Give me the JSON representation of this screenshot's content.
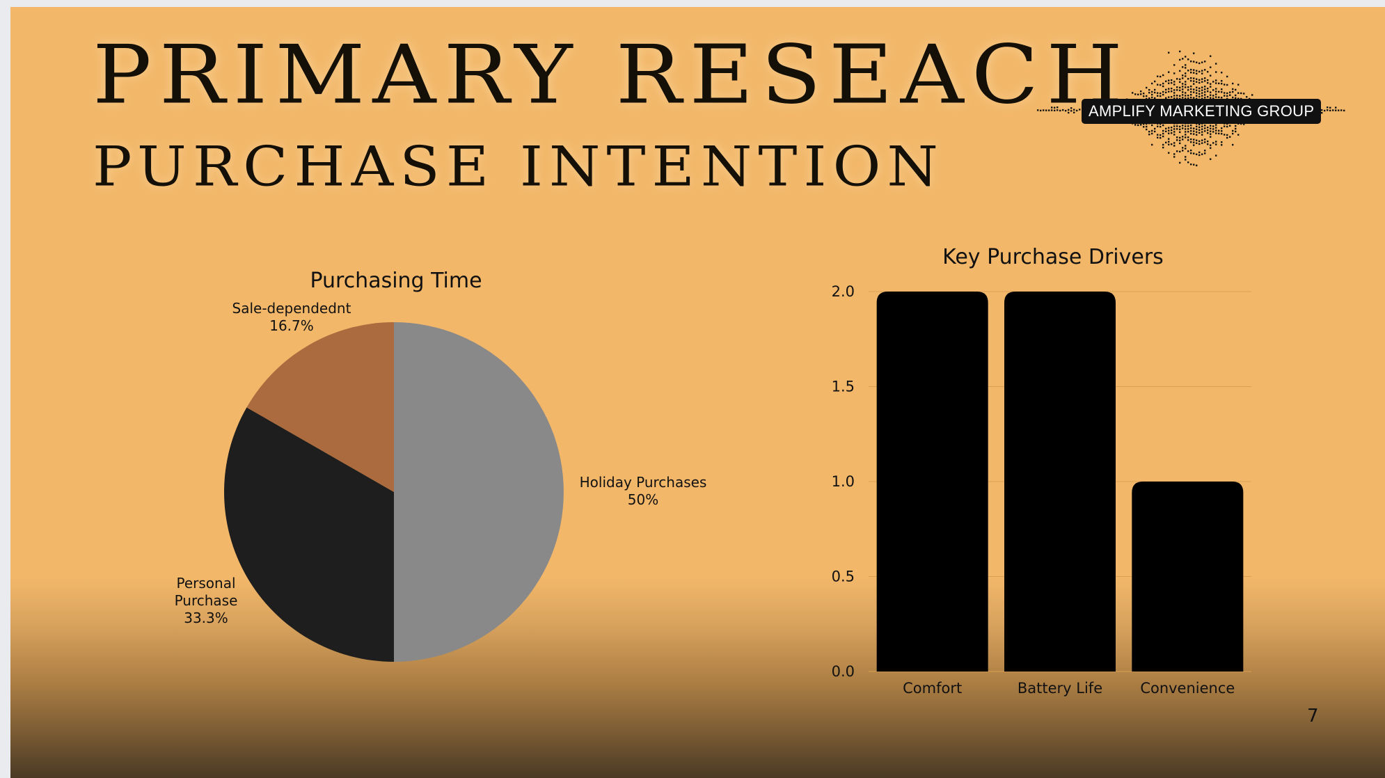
{
  "slide": {
    "title": "PRIMARY RESEACH",
    "subtitle": "PURCHASE INTENTION",
    "logo_text": "AMPLIFY MARKETING GROUP",
    "page_number": "7"
  },
  "colors": {
    "background": "#f2b769",
    "pie_holiday": "#898989",
    "pie_personal": "#1e1e1e",
    "pie_sale": "#ab6b3f",
    "bars": "#000000"
  },
  "chart_data": [
    {
      "type": "pie",
      "title": "Purchasing Time",
      "slices": [
        {
          "name": "Holiday Purchases",
          "label": "50%",
          "value": 50
        },
        {
          "name": "Personal Purchase",
          "label": "33.3%",
          "value": 33.3
        },
        {
          "name": "Sale-dependednt",
          "label": "16.7%",
          "value": 16.7
        }
      ]
    },
    {
      "type": "bar",
      "title": "Key Purchase Drivers",
      "categories": [
        "Comfort",
        "Battery Life",
        "Convenience"
      ],
      "values": [
        2,
        2,
        1
      ],
      "ylim": [
        0,
        2
      ],
      "yticks": [
        "0.0",
        "0.5",
        "1.0",
        "1.5",
        "2.0"
      ],
      "grid": true,
      "xlabel": "",
      "ylabel": ""
    }
  ]
}
